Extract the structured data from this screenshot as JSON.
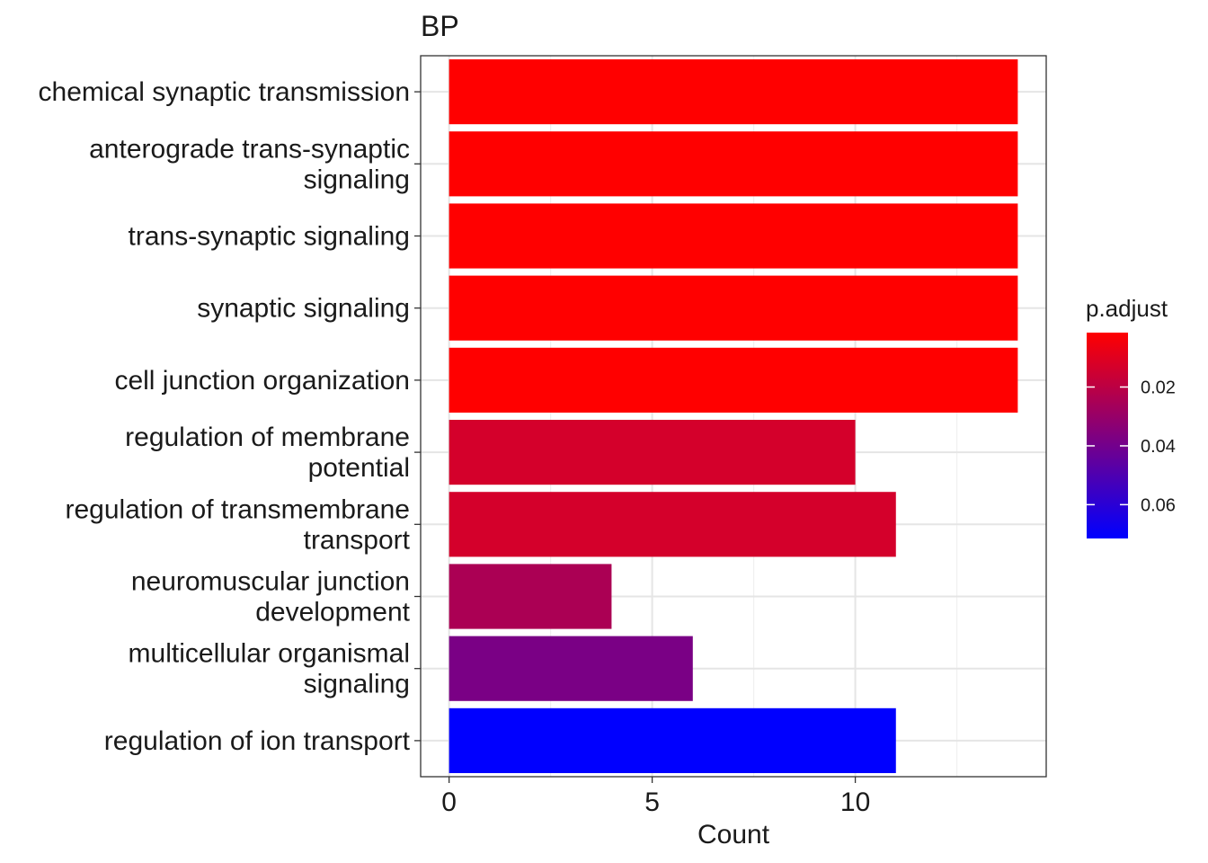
{
  "chart_data": {
    "type": "bar",
    "orientation": "horizontal",
    "title": "BP",
    "xlabel": "Count",
    "ylabel": "",
    "xlim": [
      -0.7,
      14.7
    ],
    "x_ticks": [
      0,
      5,
      10
    ],
    "grid": true,
    "categories": [
      [
        "chemical synaptic transmission"
      ],
      [
        "anterograde trans-synaptic",
        "signaling"
      ],
      [
        "trans-synaptic signaling"
      ],
      [
        "synaptic signaling"
      ],
      [
        "cell junction organization"
      ],
      [
        "regulation of membrane",
        "potential"
      ],
      [
        "regulation of transmembrane",
        "transport"
      ],
      [
        "neuromuscular junction",
        "development"
      ],
      [
        "multicellular organismal",
        "signaling"
      ],
      [
        "regulation of ion transport"
      ]
    ],
    "values": [
      14,
      14,
      14,
      14,
      14,
      10,
      11,
      4,
      6,
      11
    ],
    "p_adjust": [
      0.0015,
      0.0015,
      0.0015,
      0.0015,
      0.0015,
      0.0132,
      0.0132,
      0.0245,
      0.0381,
      0.0715
    ],
    "legend": {
      "title": "p.adjust",
      "position": "right",
      "range": [
        0.0015,
        0.0715
      ],
      "ticks": [
        "0.02",
        "0.04",
        "0.06"
      ],
      "tick_values": [
        0.02,
        0.04,
        0.06
      ],
      "low_color": "#ff0000",
      "high_color": "#0000ff"
    }
  }
}
